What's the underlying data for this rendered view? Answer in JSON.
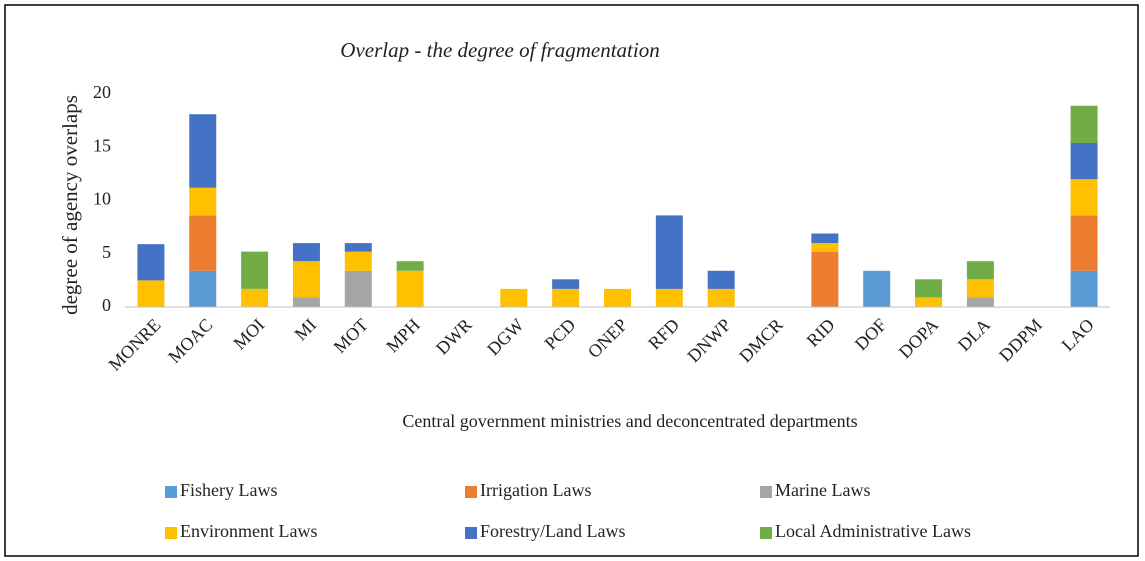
{
  "chart_data": {
    "type": "stacked_bar",
    "title": "Overlap - the degree of fragmentation",
    "y_label": "degree of agency overlaps",
    "x_label": "Central government ministries  and deconcentrated departments",
    "categories": [
      "MONRE",
      "MOAC",
      "MOI",
      "MI",
      "MOT",
      "MPH",
      "DWR",
      "DGW",
      "PCD",
      "ONEP",
      "RFD",
      "DNWP",
      "DMCR",
      "RID",
      "DOF",
      "DOPA",
      "DLA",
      "DDPM",
      "LAO"
    ],
    "series": [
      {
        "name": "Fishery Laws",
        "color": "#5b9bd5",
        "values": [
          0,
          3.4,
          0,
          0,
          0,
          0,
          0,
          0,
          0,
          0,
          0,
          0,
          0,
          0,
          3.4,
          0,
          0,
          0,
          3.4
        ]
      },
      {
        "name": "Irrigation Laws",
        "color": "#ed7d31",
        "values": [
          0,
          5.2,
          0,
          0,
          0,
          0,
          0,
          0,
          0,
          0,
          0,
          0,
          0,
          5.2,
          0,
          0,
          0,
          0,
          5.2
        ]
      },
      {
        "name": "Marine Laws",
        "color": "#a5a5a5",
        "values": [
          0,
          0,
          0,
          0.9,
          3.4,
          0,
          0,
          0,
          0,
          0,
          0,
          0,
          0,
          0,
          0,
          0,
          0.9,
          0,
          0
        ]
      },
      {
        "name": "Environment Laws",
        "color": "#ffc000",
        "values": [
          2.5,
          2.6,
          1.7,
          3.4,
          1.8,
          3.4,
          0,
          1.7,
          1.7,
          1.7,
          1.7,
          1.7,
          0,
          0.8,
          0,
          0.9,
          1.7,
          0,
          3.4
        ]
      },
      {
        "name": "Forestry/Land Laws",
        "color": "#4472c4",
        "values": [
          3.4,
          6.9,
          0,
          1.7,
          0.8,
          0,
          0,
          0,
          0.9,
          0,
          6.9,
          1.7,
          0,
          0.9,
          0,
          0,
          0,
          0,
          3.4
        ]
      },
      {
        "name": "Local Administrative Laws",
        "color": "#70ad47",
        "values": [
          0,
          0,
          3.5,
          0,
          0,
          0.9,
          0,
          0,
          0,
          0,
          0,
          0,
          0,
          0,
          0,
          1.7,
          1.7,
          0,
          3.5
        ]
      }
    ],
    "ylim": [
      0,
      20
    ],
    "yticks": [
      0,
      5,
      10,
      15,
      20
    ],
    "legend": "bottom"
  }
}
